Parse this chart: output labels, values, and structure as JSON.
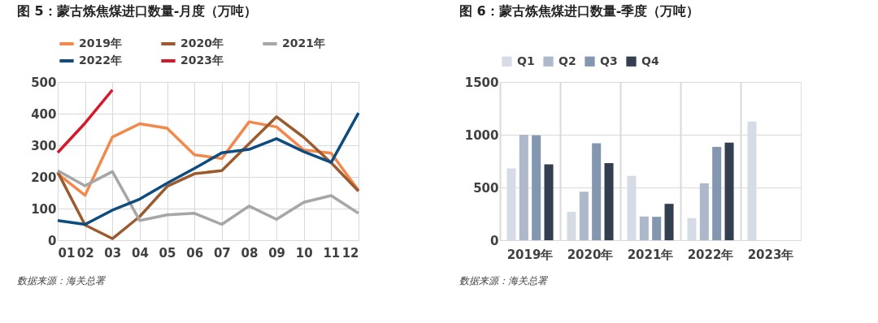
{
  "chart_data": [
    {
      "type": "line",
      "title": "图 5：蒙古炼焦煤进口数量-月度（万吨）",
      "categories": [
        "01",
        "02",
        "03",
        "04",
        "05",
        "06",
        "07",
        "08",
        "09",
        "10",
        "11",
        "12"
      ],
      "series": [
        {
          "name": "2019年",
          "color": "#f4874b",
          "values": [
            210,
            142,
            326,
            368,
            354,
            270,
            258,
            374,
            358,
            285,
            275,
            157
          ]
        },
        {
          "name": "2020年",
          "color": "#9c5b2e",
          "values": [
            215,
            48,
            5,
            75,
            170,
            210,
            220,
            305,
            390,
            325,
            245,
            155
          ]
        },
        {
          "name": "2021年",
          "color": "#a6a6a6",
          "values": [
            220,
            172,
            217,
            62,
            80,
            85,
            50,
            108,
            66,
            120,
            141,
            85
          ]
        },
        {
          "name": "2022年",
          "color": "#0e4c7f",
          "values": [
            62,
            50,
            95,
            130,
            180,
            227,
            276,
            287,
            321,
            280,
            246,
            402
          ]
        },
        {
          "name": "2023年",
          "color": "#d7182a",
          "values": [
            277,
            370,
            475,
            null,
            null,
            null,
            null,
            null,
            null,
            null,
            null,
            null
          ]
        }
      ],
      "ylim": [
        0,
        500
      ],
      "yticks": [
        0,
        100,
        200,
        300,
        400,
        500
      ],
      "grid": true,
      "legend": "top",
      "line_style": "solid",
      "marker": "none",
      "annotations": [
        "数据来源：海关总署"
      ]
    },
    {
      "type": "bar",
      "title": "图 6：蒙古炼焦煤进口数量-季度（万吨）",
      "categories": [
        "2019年",
        "2020年",
        "2021年",
        "2022年",
        "2023年"
      ],
      "series": [
        {
          "name": "Q1",
          "color": "#d6dce5",
          "values": [
            680,
            270,
            610,
            210,
            1125
          ]
        },
        {
          "name": "Q2",
          "color": "#adb9ca",
          "values": [
            1000,
            460,
            225,
            540,
            null
          ]
        },
        {
          "name": "Q3",
          "color": "#8497b0",
          "values": [
            995,
            920,
            222,
            885,
            null
          ]
        },
        {
          "name": "Q4",
          "color": "#333f50",
          "values": [
            720,
            730,
            345,
            925,
            null
          ]
        }
      ],
      "ylim": [
        0,
        1500
      ],
      "yticks": [
        0,
        500,
        {
          "value": 1000,
          "label": "1000"
        },
        {
          "value": 1500,
          "label": "1500"
        }
      ],
      "grid": true,
      "legend": "top",
      "annotations": [
        "数据来源：海关总署"
      ]
    }
  ]
}
